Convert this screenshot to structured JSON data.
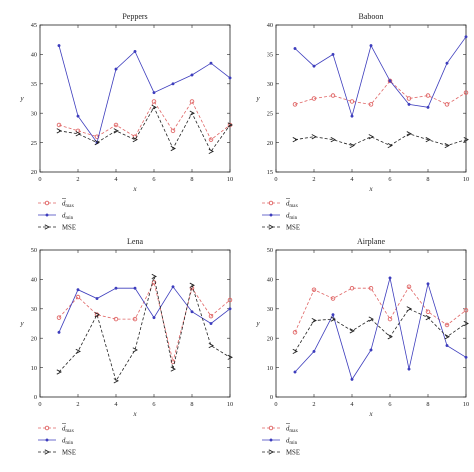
{
  "legend": {
    "dmax": {
      "base": "d",
      "sub": "max"
    },
    "dmin": {
      "base": "d",
      "sub": "min"
    },
    "mse": "MSE"
  },
  "colors": {
    "dmax": "#e06666",
    "dmin": "#3d3dbd",
    "mse": "#222222"
  },
  "chart_data": [
    {
      "type": "line",
      "title": "Peppers",
      "xlabel": "x",
      "ylabel": "y",
      "xlim": [
        0,
        10
      ],
      "ylim": [
        20,
        45
      ],
      "xticks": [
        0,
        2,
        4,
        6,
        8,
        10
      ],
      "yticks": [
        20,
        25,
        30,
        35,
        40,
        45
      ],
      "x": [
        1,
        2,
        3,
        4,
        5,
        6,
        7,
        8,
        9,
        10
      ],
      "series": [
        {
          "key": "dmax",
          "values": [
            28,
            27,
            26,
            28,
            26,
            32,
            27,
            32,
            25.5,
            28
          ]
        },
        {
          "key": "dmin",
          "values": [
            41.5,
            29.5,
            25,
            37.5,
            40.5,
            33.5,
            35,
            36.5,
            38.5,
            36
          ]
        },
        {
          "key": "mse",
          "values": [
            27,
            26.5,
            25,
            27,
            25.5,
            31,
            24,
            30,
            23.5,
            28
          ]
        }
      ]
    },
    {
      "type": "line",
      "title": "Baboon",
      "xlabel": "x",
      "ylabel": "y",
      "xlim": [
        0,
        10
      ],
      "ylim": [
        15,
        40
      ],
      "xticks": [
        0,
        2,
        4,
        6,
        8,
        10
      ],
      "yticks": [
        15,
        20,
        25,
        30,
        35,
        40
      ],
      "x": [
        1,
        2,
        3,
        4,
        5,
        6,
        7,
        8,
        9,
        10
      ],
      "series": [
        {
          "key": "dmax",
          "values": [
            26.5,
            27.5,
            28,
            27,
            26.5,
            30.5,
            27.5,
            28,
            26.5,
            28.5
          ]
        },
        {
          "key": "dmin",
          "values": [
            36,
            33,
            35,
            24.5,
            36.5,
            30.5,
            26.5,
            26,
            33.5,
            38
          ]
        },
        {
          "key": "mse",
          "values": [
            20.5,
            21,
            20.5,
            19.5,
            21,
            19.5,
            21.5,
            20.5,
            19.5,
            20.5
          ]
        }
      ]
    },
    {
      "type": "line",
      "title": "Lena",
      "xlabel": "x",
      "ylabel": "y",
      "xlim": [
        0,
        10
      ],
      "ylim": [
        0,
        50
      ],
      "xticks": [
        0,
        2,
        4,
        6,
        8,
        10
      ],
      "yticks": [
        0,
        10,
        20,
        30,
        40,
        50
      ],
      "x": [
        1,
        2,
        3,
        4,
        5,
        6,
        7,
        8,
        9,
        10
      ],
      "series": [
        {
          "key": "dmax",
          "values": [
            27,
            34,
            28,
            26.5,
            26.5,
            39,
            12,
            37,
            27.5,
            33
          ]
        },
        {
          "key": "dmin",
          "values": [
            22,
            36.5,
            33.5,
            37,
            37,
            27,
            37.5,
            29,
            25,
            30
          ]
        },
        {
          "key": "mse",
          "values": [
            8.5,
            15.5,
            28,
            5.5,
            16,
            41,
            9.5,
            38,
            17.5,
            13.5
          ]
        }
      ]
    },
    {
      "type": "line",
      "title": "Airplane",
      "xlabel": "x",
      "ylabel": "y",
      "xlim": [
        0,
        10
      ],
      "ylim": [
        0,
        50
      ],
      "xticks": [
        0,
        2,
        4,
        6,
        8,
        10
      ],
      "yticks": [
        0,
        10,
        20,
        30,
        40,
        50
      ],
      "x": [
        1,
        2,
        3,
        4,
        5,
        6,
        7,
        8,
        9,
        10
      ],
      "series": [
        {
          "key": "dmax",
          "values": [
            22,
            36.5,
            33.5,
            37,
            37,
            26.5,
            37.5,
            29,
            24.5,
            29.5
          ]
        },
        {
          "key": "dmin",
          "values": [
            8.5,
            15.5,
            28,
            6,
            16,
            40.5,
            9.5,
            38.5,
            17.5,
            13.5
          ]
        },
        {
          "key": "mse",
          "values": [
            15.5,
            26,
            26.5,
            22.5,
            26.5,
            20.5,
            30,
            27,
            20.5,
            25
          ]
        }
      ]
    }
  ]
}
